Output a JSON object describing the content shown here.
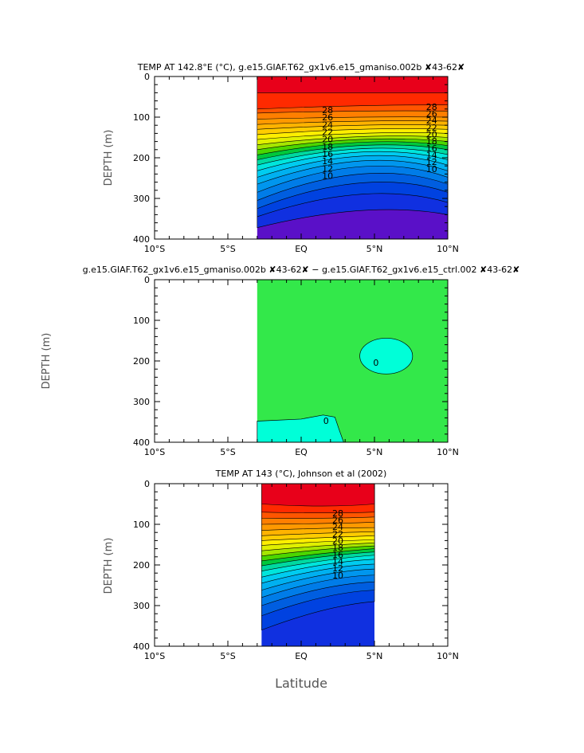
{
  "figure": {
    "xlabel": "Latitude"
  },
  "chart_data": [
    {
      "type": "contour",
      "title": "TEMP AT 142.8°E (°C), g.e15.GIAF.T62_gx1v6.e15_gmaniso.002b ✘43-62✘",
      "ylabel": "DEPTH (m)",
      "xlim": [
        -10,
        10
      ],
      "ylim": [
        400,
        0
      ],
      "x_ticks": [
        "10°S",
        "5°S",
        "EQ",
        "5°N",
        "10°N"
      ],
      "x_tick_values": [
        -10,
        -5,
        0,
        5,
        10
      ],
      "y_ticks": [
        "0",
        "100",
        "200",
        "300",
        "400"
      ],
      "y_tick_values": [
        0,
        100,
        200,
        300,
        400
      ],
      "data_lat_range": [
        -3,
        10
      ],
      "contour_labels": [
        "28",
        "26",
        "24",
        "22",
        "20",
        "18",
        "16",
        "14",
        "12",
        "10",
        "28",
        "26",
        "24",
        "22",
        "20",
        "18",
        "16",
        "14",
        "12",
        "10"
      ],
      "levels": [
        {
          "value": 29,
          "left_depth": 40,
          "mid_depth": 40,
          "right_depth": 40,
          "color": "#e8001a"
        },
        {
          "value": 28,
          "left_depth": 80,
          "mid_depth": 72,
          "right_depth": 70,
          "color": "#ff2a00"
        },
        {
          "value": 27,
          "left_depth": 90,
          "mid_depth": 85,
          "right_depth": 85,
          "color": "#ff5500"
        },
        {
          "value": 26,
          "left_depth": 105,
          "mid_depth": 100,
          "right_depth": 100,
          "color": "#ff7f00"
        },
        {
          "value": 25,
          "left_depth": 118,
          "mid_depth": 110,
          "right_depth": 110,
          "color": "#ff9900"
        },
        {
          "value": 24,
          "left_depth": 130,
          "mid_depth": 120,
          "right_depth": 120,
          "color": "#ffb300"
        },
        {
          "value": 23,
          "left_depth": 143,
          "mid_depth": 130,
          "right_depth": 130,
          "color": "#ffcc00"
        },
        {
          "value": 22,
          "left_depth": 155,
          "mid_depth": 140,
          "right_depth": 140,
          "color": "#ffee00"
        },
        {
          "value": 21,
          "left_depth": 168,
          "mid_depth": 148,
          "right_depth": 150,
          "color": "#e0f000"
        },
        {
          "value": 20,
          "left_depth": 180,
          "mid_depth": 155,
          "right_depth": 160,
          "color": "#a6e600"
        },
        {
          "value": 19,
          "left_depth": 193,
          "mid_depth": 162,
          "right_depth": 170,
          "color": "#4cd600"
        },
        {
          "value": 18,
          "left_depth": 205,
          "mid_depth": 170,
          "right_depth": 180,
          "color": "#00c83c"
        },
        {
          "value": 17,
          "left_depth": 218,
          "mid_depth": 178,
          "right_depth": 192,
          "color": "#00d9a0"
        },
        {
          "value": 16,
          "left_depth": 232,
          "mid_depth": 186,
          "right_depth": 205,
          "color": "#00e5dc"
        },
        {
          "value": 15,
          "left_depth": 248,
          "mid_depth": 196,
          "right_depth": 218,
          "color": "#00ccf0"
        },
        {
          "value": 14,
          "left_depth": 265,
          "mid_depth": 208,
          "right_depth": 232,
          "color": "#00b0f0"
        },
        {
          "value": 13,
          "left_depth": 285,
          "mid_depth": 222,
          "right_depth": 248,
          "color": "#0096ee"
        },
        {
          "value": 12,
          "left_depth": 305,
          "mid_depth": 240,
          "right_depth": 265,
          "color": "#007ce8"
        },
        {
          "value": 11,
          "left_depth": 325,
          "mid_depth": 262,
          "right_depth": 285,
          "color": "#005ee0"
        },
        {
          "value": 10,
          "left_depth": 345,
          "mid_depth": 290,
          "right_depth": 310,
          "color": "#0042e0"
        },
        {
          "value": 9,
          "left_depth": 372,
          "mid_depth": 330,
          "right_depth": 340,
          "color": "#1030e0"
        }
      ],
      "below_color": "#5a10c8"
    },
    {
      "type": "contour",
      "title": "g.e15.GIAF.T62_gx1v6.e15_gmaniso.002b ✘43-62✘ − g.e15.GIAF.T62_gx1v6.e15_ctrl.002 ✘43-62✘",
      "ylabel": "DEPTH (m)",
      "xlim": [
        -10,
        10
      ],
      "ylim": [
        400,
        0
      ],
      "x_ticks": [
        "10°S",
        "5°S",
        "EQ",
        "5°N",
        "10°N"
      ],
      "x_tick_values": [
        -10,
        -5,
        0,
        5,
        10
      ],
      "y_ticks": [
        "0",
        "100",
        "200",
        "300",
        "400"
      ],
      "y_tick_values": [
        0,
        100,
        200,
        300,
        400
      ],
      "data_lat_range": [
        -3,
        10
      ],
      "contour_labels": [
        "0",
        "0"
      ],
      "background_color": "#33e84a",
      "negative_color": "#00ffd8"
    },
    {
      "type": "contour",
      "title": "TEMP AT 143 (°C), Johnson et al (2002)",
      "ylabel": "DEPTH (m)",
      "xlim": [
        -10,
        10
      ],
      "ylim": [
        400,
        0
      ],
      "x_ticks": [
        "10°S",
        "5°S",
        "EQ",
        "5°N",
        "10°N"
      ],
      "x_tick_values": [
        -10,
        -5,
        0,
        5,
        10
      ],
      "y_ticks": [
        "0",
        "100",
        "200",
        "300",
        "400"
      ],
      "y_tick_values": [
        0,
        100,
        200,
        300,
        400
      ],
      "data_lat_range": [
        -2.7,
        5
      ],
      "contour_labels": [
        "28",
        "26",
        "24",
        "22",
        "20",
        "18",
        "16",
        "14",
        "12",
        "10"
      ],
      "levels": [
        {
          "value": 29,
          "left_depth": 50,
          "mid_depth": 55,
          "right_depth": 50,
          "color": "#e8001a"
        },
        {
          "value": 28,
          "left_depth": 70,
          "mid_depth": 72,
          "right_depth": 70,
          "color": "#ff2a00"
        },
        {
          "value": 27,
          "left_depth": 85,
          "mid_depth": 85,
          "right_depth": 82,
          "color": "#ff5500"
        },
        {
          "value": 26,
          "left_depth": 100,
          "mid_depth": 98,
          "right_depth": 95,
          "color": "#ff7f00"
        },
        {
          "value": 25,
          "left_depth": 115,
          "mid_depth": 110,
          "right_depth": 108,
          "color": "#ff9900"
        },
        {
          "value": 24,
          "left_depth": 128,
          "mid_depth": 122,
          "right_depth": 118,
          "color": "#ffb300"
        },
        {
          "value": 23,
          "left_depth": 140,
          "mid_depth": 133,
          "right_depth": 128,
          "color": "#ffcc00"
        },
        {
          "value": 22,
          "left_depth": 152,
          "mid_depth": 143,
          "right_depth": 138,
          "color": "#ffee00"
        },
        {
          "value": 21,
          "left_depth": 165,
          "mid_depth": 153,
          "right_depth": 146,
          "color": "#e0f000"
        },
        {
          "value": 20,
          "left_depth": 178,
          "mid_depth": 162,
          "right_depth": 153,
          "color": "#a6e600"
        },
        {
          "value": 19,
          "left_depth": 190,
          "mid_depth": 172,
          "right_depth": 160,
          "color": "#4cd600"
        },
        {
          "value": 18,
          "left_depth": 202,
          "mid_depth": 180,
          "right_depth": 168,
          "color": "#00c83c"
        },
        {
          "value": 17,
          "left_depth": 215,
          "mid_depth": 190,
          "right_depth": 176,
          "color": "#00d9a0"
        },
        {
          "value": 16,
          "left_depth": 230,
          "mid_depth": 200,
          "right_depth": 186,
          "color": "#00e5dc"
        },
        {
          "value": 15,
          "left_depth": 245,
          "mid_depth": 212,
          "right_depth": 198,
          "color": "#00ccf0"
        },
        {
          "value": 14,
          "left_depth": 262,
          "mid_depth": 225,
          "right_depth": 210,
          "color": "#00b0f0"
        },
        {
          "value": 13,
          "left_depth": 280,
          "mid_depth": 240,
          "right_depth": 225,
          "color": "#0096ee"
        },
        {
          "value": 12,
          "left_depth": 300,
          "mid_depth": 258,
          "right_depth": 242,
          "color": "#007ce8"
        },
        {
          "value": 11,
          "left_depth": 325,
          "mid_depth": 280,
          "right_depth": 262,
          "color": "#005ee0"
        },
        {
          "value": 10,
          "left_depth": 360,
          "mid_depth": 312,
          "right_depth": 290,
          "color": "#0042e0"
        }
      ],
      "below_color": "#1030e0"
    }
  ]
}
